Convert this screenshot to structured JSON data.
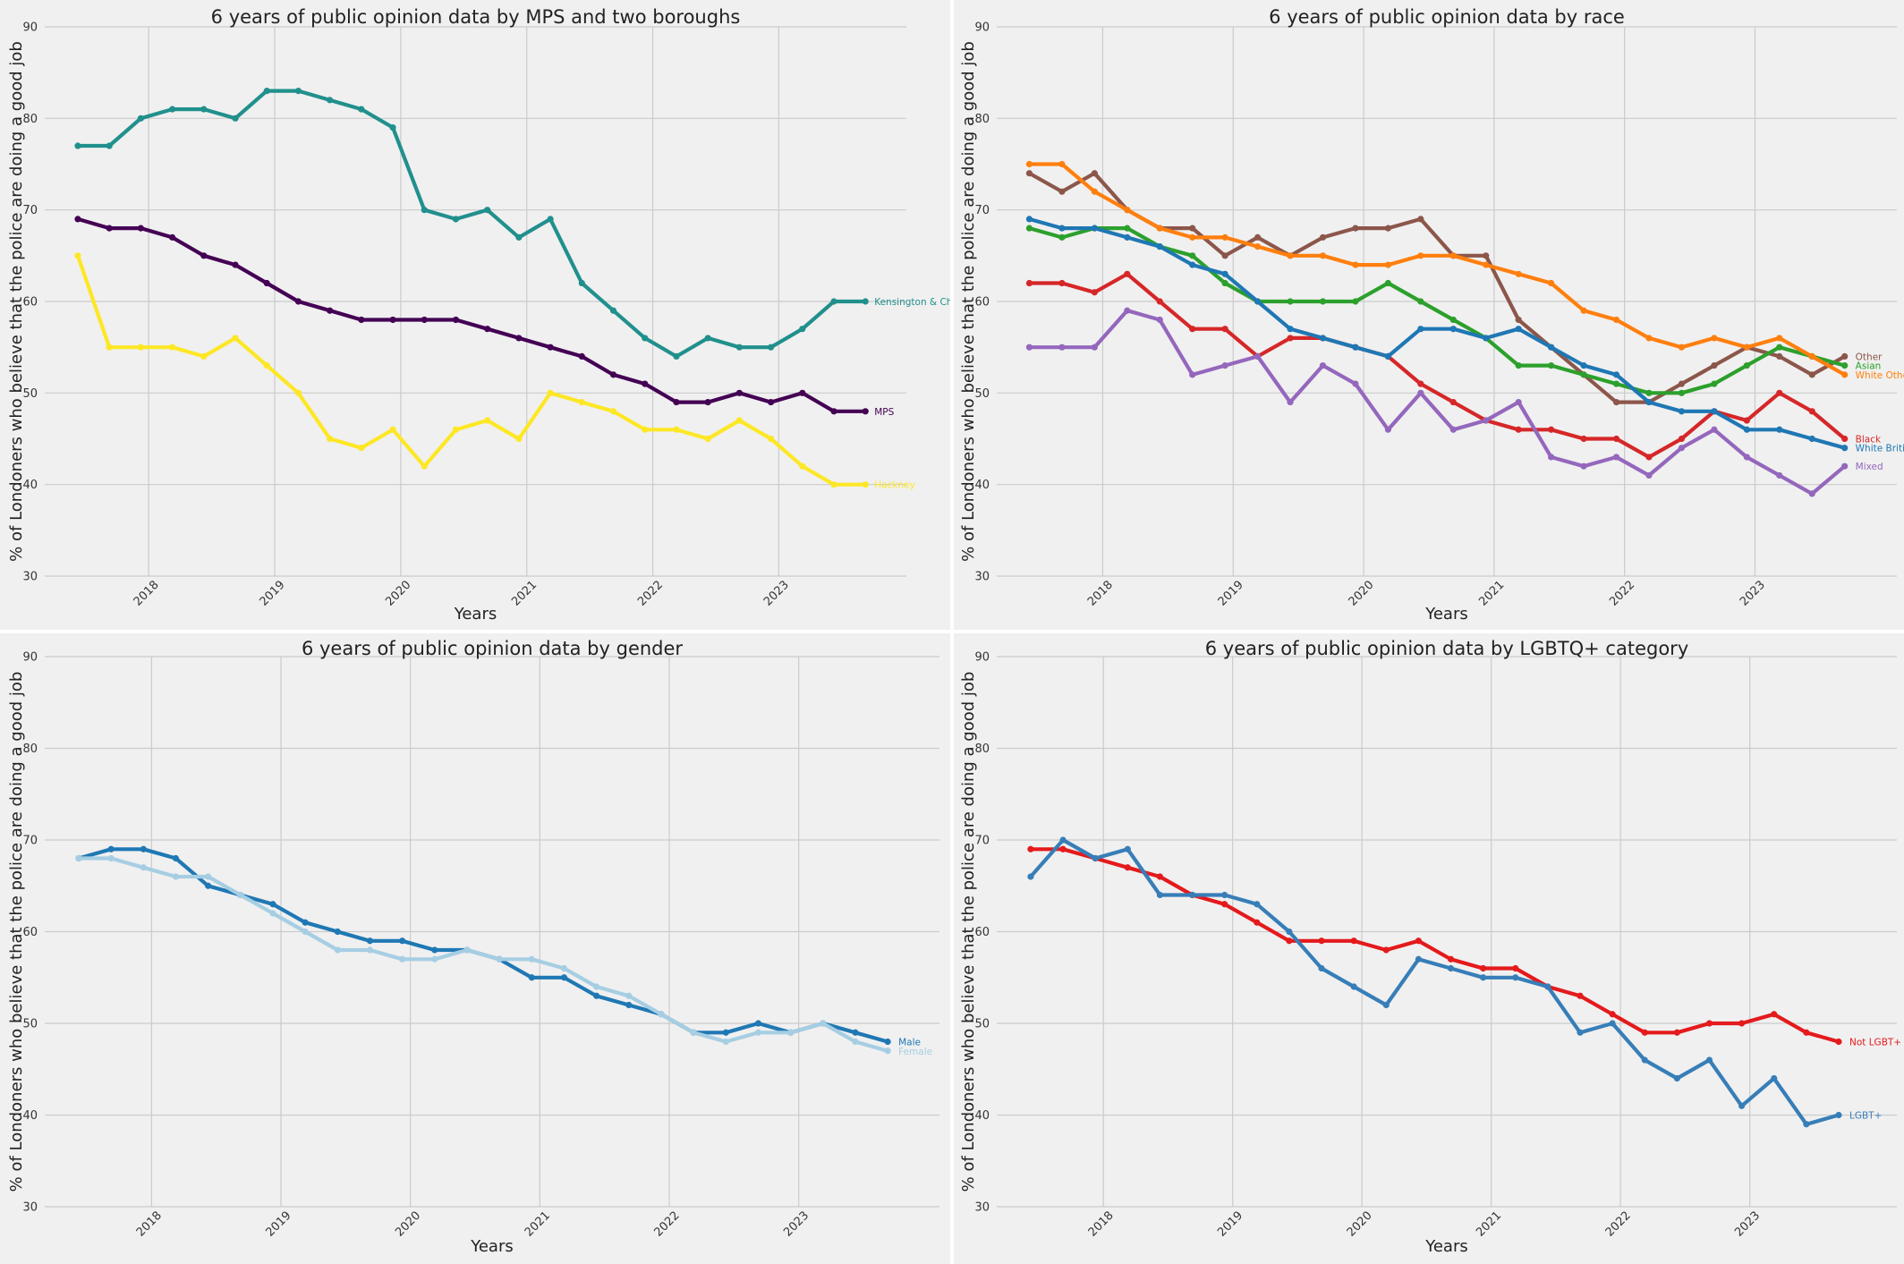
{
  "chart_data": [
    {
      "type": "line",
      "title": "6 years of public opinion data by MPS and two boroughs",
      "xlabel": "Years",
      "ylabel": "% of Londoners who believe that the police are doing a good job",
      "ylim": [
        30,
        90
      ],
      "yticks": [
        30,
        40,
        50,
        60,
        70,
        80,
        90
      ],
      "xticks": [
        "2018",
        "2019",
        "2020",
        "2021",
        "2022",
        "2023"
      ],
      "xtick_positions": [
        2.25,
        6.25,
        10.25,
        14.25,
        18.25,
        22.25
      ],
      "x_count": 26,
      "grid": true,
      "series": [
        {
          "name": "Kensington & Chelsea",
          "color": "#21908d",
          "values": [
            77,
            77,
            80,
            81,
            81,
            80,
            83,
            83,
            82,
            81,
            79,
            70,
            69,
            70,
            67,
            69,
            62,
            59,
            56,
            54,
            56,
            55,
            55,
            57,
            60,
            60
          ]
        },
        {
          "name": "MPS",
          "color": "#440154",
          "values": [
            69,
            68,
            68,
            67,
            65,
            64,
            62,
            60,
            59,
            58,
            58,
            58,
            58,
            57,
            56,
            55,
            54,
            52,
            51,
            49,
            49,
            50,
            49,
            50,
            48,
            48
          ]
        },
        {
          "name": "Hackney",
          "color": "#fde725",
          "values": [
            65,
            55,
            55,
            55,
            54,
            56,
            53,
            50,
            45,
            44,
            46,
            42,
            46,
            47,
            45,
            50,
            49,
            48,
            46,
            46,
            45,
            47,
            45,
            42,
            40,
            40
          ]
        }
      ]
    },
    {
      "type": "line",
      "title": "6 years of public opinion data by race",
      "xlabel": "Years",
      "ylabel": "% of Londoners who believe that the police are doing a good job",
      "ylim": [
        30,
        90
      ],
      "yticks": [
        30,
        40,
        50,
        60,
        70,
        80,
        90
      ],
      "xticks": [
        "2018",
        "2019",
        "2020",
        "2021",
        "2022",
        "2023"
      ],
      "xtick_positions": [
        2.25,
        6.25,
        10.25,
        14.25,
        18.25,
        22.25
      ],
      "x_count": 26,
      "grid": true,
      "series": [
        {
          "name": "Other",
          "color": "#8c564b",
          "values": [
            74,
            72,
            74,
            70,
            68,
            68,
            65,
            67,
            65,
            67,
            68,
            68,
            69,
            65,
            65,
            58,
            55,
            52,
            49,
            49,
            51,
            53,
            55,
            54,
            52,
            54
          ]
        },
        {
          "name": "Asian",
          "color": "#2ca02c",
          "values": [
            68,
            67,
            68,
            68,
            66,
            65,
            62,
            60,
            60,
            60,
            60,
            62,
            60,
            58,
            56,
            53,
            53,
            52,
            51,
            50,
            50,
            51,
            53,
            55,
            54,
            53
          ]
        },
        {
          "name": "White Other",
          "color": "#ff7f0e",
          "values": [
            75,
            75,
            72,
            70,
            68,
            67,
            67,
            66,
            65,
            65,
            64,
            64,
            65,
            65,
            64,
            63,
            62,
            59,
            58,
            56,
            55,
            56,
            55,
            56,
            54,
            52
          ]
        },
        {
          "name": "Black",
          "color": "#d62728",
          "values": [
            62,
            62,
            61,
            63,
            60,
            57,
            57,
            54,
            56,
            56,
            55,
            54,
            51,
            49,
            47,
            46,
            46,
            45,
            45,
            43,
            45,
            48,
            47,
            50,
            48,
            45
          ]
        },
        {
          "name": "White British",
          "color": "#1f77b4",
          "values": [
            69,
            68,
            68,
            67,
            66,
            64,
            63,
            60,
            57,
            56,
            55,
            54,
            57,
            57,
            56,
            57,
            55,
            53,
            52,
            49,
            48,
            48,
            46,
            46,
            45,
            44
          ]
        },
        {
          "name": "Mixed",
          "color": "#9467bd",
          "values": [
            55,
            55,
            55,
            59,
            58,
            52,
            53,
            54,
            49,
            53,
            51,
            46,
            50,
            46,
            47,
            49,
            43,
            42,
            43,
            41,
            44,
            46,
            43,
            41,
            39,
            42
          ]
        }
      ]
    },
    {
      "type": "line",
      "title": "6 years of public opinion data by gender",
      "xlabel": "Years",
      "ylabel": "% of Londoners who believe that the police are doing a good job",
      "ylim": [
        30,
        90
      ],
      "yticks": [
        30,
        40,
        50,
        60,
        70,
        80,
        90
      ],
      "xticks": [
        "2018",
        "2019",
        "2020",
        "2021",
        "2022",
        "2023"
      ],
      "xtick_positions": [
        2.25,
        6.25,
        10.25,
        14.25,
        18.25,
        22.25
      ],
      "x_count": 26,
      "grid": true,
      "series": [
        {
          "name": "Male",
          "color": "#1f78b4",
          "values": [
            68,
            69,
            69,
            68,
            65,
            64,
            63,
            61,
            60,
            59,
            59,
            58,
            58,
            57,
            55,
            55,
            53,
            52,
            51,
            49,
            49,
            50,
            49,
            50,
            49,
            48
          ]
        },
        {
          "name": "Female",
          "color": "#a6cee3",
          "values": [
            68,
            68,
            67,
            66,
            66,
            64,
            62,
            60,
            58,
            58,
            57,
            57,
            58,
            57,
            57,
            56,
            54,
            53,
            51,
            49,
            48,
            49,
            49,
            50,
            48,
            47
          ]
        }
      ]
    },
    {
      "type": "line",
      "title": "6 years of public opinion data by LGBTQ+ category",
      "xlabel": "Years",
      "ylabel": "% of Londoners who believe that the police are doing a good job",
      "ylim": [
        30,
        90
      ],
      "yticks": [
        30,
        40,
        50,
        60,
        70,
        80,
        90
      ],
      "xticks": [
        "2018",
        "2019",
        "2020",
        "2021",
        "2022",
        "2023"
      ],
      "xtick_positions": [
        2.25,
        6.25,
        10.25,
        14.25,
        18.25,
        22.25
      ],
      "x_count": 26,
      "grid": true,
      "series": [
        {
          "name": "Not LGBT+",
          "color": "#e41a1c",
          "values": [
            69,
            69,
            68,
            67,
            66,
            64,
            63,
            61,
            59,
            59,
            59,
            58,
            59,
            57,
            56,
            56,
            54,
            53,
            51,
            49,
            49,
            50,
            50,
            51,
            49,
            48
          ]
        },
        {
          "name": "LGBT+",
          "color": "#377eb8",
          "values": [
            66,
            70,
            68,
            69,
            64,
            64,
            64,
            63,
            60,
            56,
            54,
            52,
            57,
            56,
            55,
            55,
            54,
            49,
            50,
            46,
            44,
            46,
            41,
            44,
            39,
            40
          ]
        }
      ]
    }
  ]
}
